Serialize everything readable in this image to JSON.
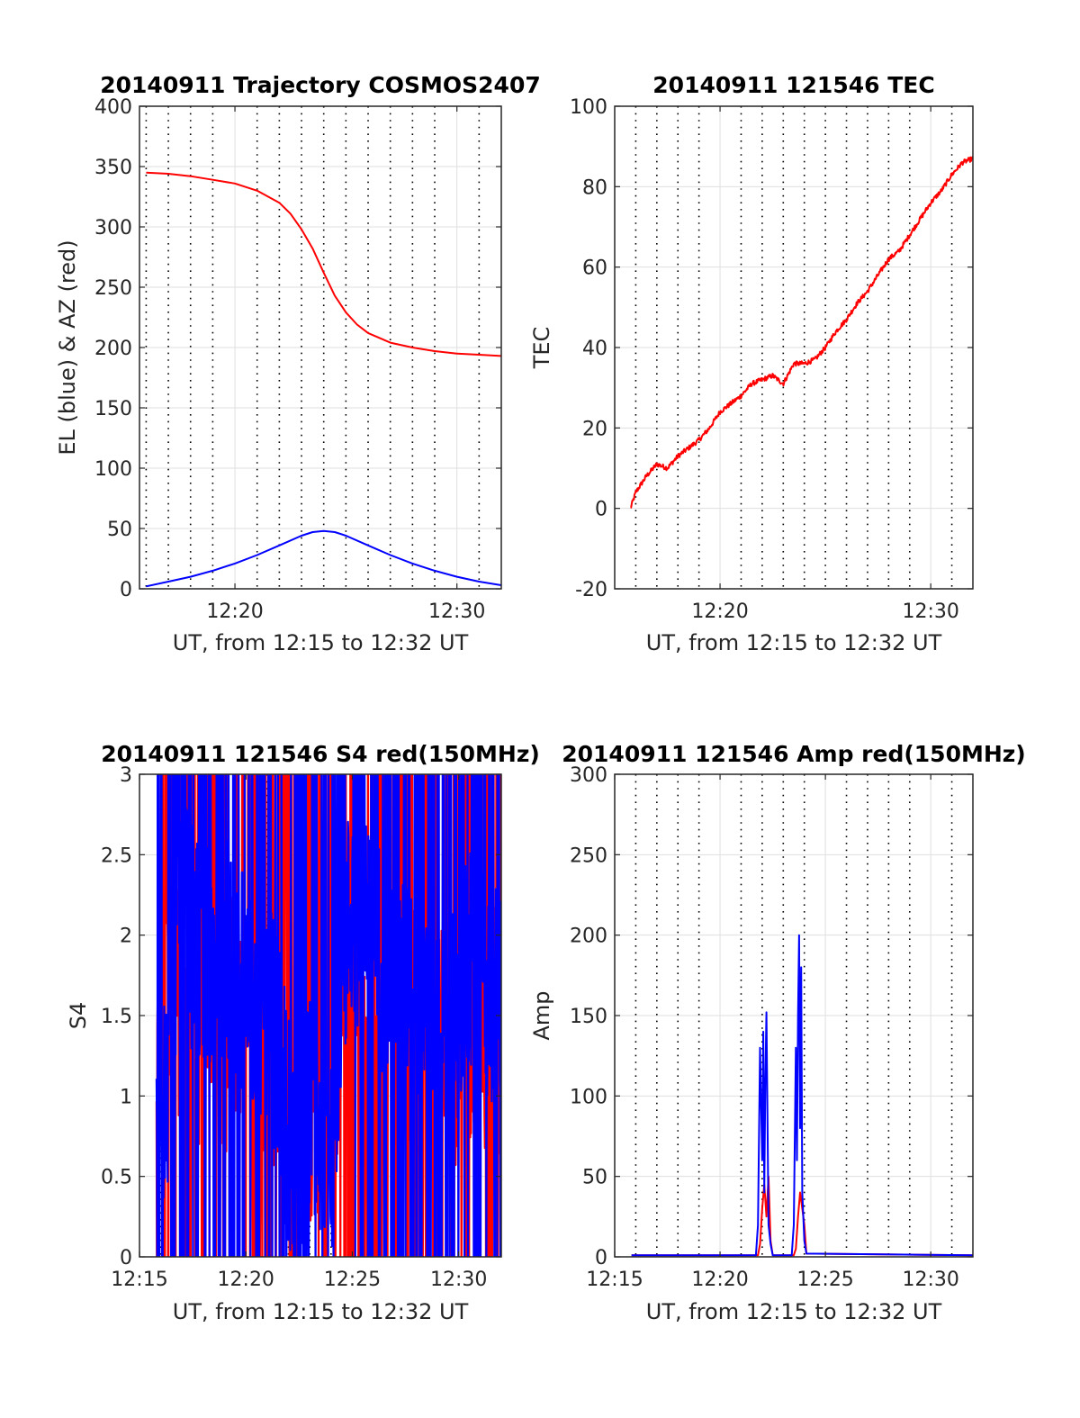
{
  "chart_data": [
    {
      "type": "line",
      "title": "20140911 Trajectory COSMOS2407",
      "xlabel": "UT, from 12:15 to 12:32 UT",
      "ylabel": "EL (blue) & AZ (red)",
      "xlim": [
        15.7,
        32.0
      ],
      "ylim": [
        0,
        400
      ],
      "xticks": [
        20,
        30
      ],
      "xtick_labels": [
        "12:20",
        "12:30"
      ],
      "yticks": [
        0,
        50,
        100,
        150,
        200,
        250,
        300,
        350,
        400
      ],
      "ytick_labels": [
        "0",
        "50",
        "100",
        "150",
        "200",
        "250",
        "300",
        "350",
        "400"
      ],
      "grid": true,
      "dotted_minute_lines": [
        16.0,
        17.0,
        18.0,
        19.0,
        21.0,
        22.0,
        23.0,
        24.0,
        25.0,
        26.0,
        27.0,
        28.0,
        29.0,
        31.0
      ],
      "series": [
        {
          "color": "#ff0000",
          "noise": 0,
          "x": [
            16.0,
            17.0,
            18.0,
            19.0,
            20.0,
            21.0,
            22.0,
            22.5,
            23.0,
            23.5,
            24.0,
            24.5,
            25.0,
            25.5,
            26.0,
            27.0,
            28.0,
            29.0,
            30.0,
            31.0,
            32.0
          ],
          "y": [
            345,
            344,
            342,
            339,
            336,
            330,
            320,
            311,
            298,
            282,
            262,
            243,
            229,
            219,
            212,
            204,
            200,
            197,
            195,
            194,
            193
          ]
        },
        {
          "color": "#0000ff",
          "noise": 0,
          "x": [
            16.0,
            17.0,
            18.0,
            19.0,
            20.0,
            21.0,
            22.0,
            23.0,
            23.5,
            24.0,
            24.5,
            25.0,
            26.0,
            27.0,
            28.0,
            29.0,
            30.0,
            31.0,
            32.0
          ],
          "y": [
            2,
            6,
            10,
            15,
            21,
            28,
            36,
            44,
            47,
            48,
            47,
            44,
            36,
            28,
            21,
            15,
            10,
            6,
            3
          ]
        }
      ]
    },
    {
      "type": "line",
      "title": "20140911 121546 TEC",
      "xlabel": "UT, from 12:15 to 12:32 UT",
      "ylabel": "TEC",
      "xlim": [
        15.0,
        32.0
      ],
      "ylim": [
        -20,
        100
      ],
      "xticks": [
        20,
        30
      ],
      "xtick_labels": [
        "12:20",
        "12:30"
      ],
      "yticks": [
        -20,
        0,
        20,
        40,
        60,
        80,
        100
      ],
      "ytick_labels": [
        "-20",
        "0",
        "20",
        "40",
        "60",
        "80",
        "100"
      ],
      "grid": true,
      "dotted_minute_lines": [
        16.0,
        17.0,
        18.0,
        19.0,
        21.0,
        22.0,
        23.0,
        24.0,
        25.0,
        26.0,
        27.0,
        28.0,
        29.0,
        31.0
      ],
      "series": [
        {
          "color": "#ff0000",
          "noise": 0.6,
          "x": [
            15.75,
            16.0,
            16.5,
            17.0,
            17.5,
            18.0,
            18.5,
            19.0,
            19.5,
            20.0,
            20.5,
            21.0,
            21.5,
            22.0,
            22.5,
            23.0,
            23.5,
            24.0,
            24.5,
            25.0,
            25.5,
            26.0,
            26.5,
            27.0,
            27.5,
            28.0,
            28.5,
            29.0,
            29.5,
            30.0,
            30.5,
            31.0,
            31.5,
            32.0
          ],
          "y": [
            0,
            4,
            8,
            11,
            10,
            13,
            15,
            17,
            20,
            24,
            26,
            28,
            31,
            32,
            33,
            31,
            36,
            36,
            37,
            40,
            44,
            47,
            51,
            54,
            58,
            62,
            64,
            68,
            72,
            76,
            79,
            83,
            86,
            87
          ]
        }
      ]
    },
    {
      "type": "line",
      "title": "20140911 121546 S4 red(150MHz)",
      "xlabel": "UT, from 12:15 to 12:32 UT",
      "ylabel": "S4",
      "xlim": [
        15.0,
        32.0
      ],
      "ylim": [
        0,
        3
      ],
      "xticks": [
        15,
        20,
        25,
        30
      ],
      "xtick_labels": [
        "12:15",
        "12:20",
        "12:25",
        "12:30"
      ],
      "yticks": [
        0,
        0.5,
        1,
        1.5,
        2,
        2.5,
        3
      ],
      "ytick_labels": [
        "0",
        "0.5",
        "1",
        "1.5",
        "2",
        "2.5",
        "3"
      ],
      "grid": true,
      "dotted_minute_lines": [
        16.0,
        17.0,
        18.0,
        19.0,
        21.0,
        22.0,
        23.0,
        24.0,
        26.0,
        27.0,
        28.0,
        29.0,
        31.0
      ],
      "series": [
        {
          "color": "#ff0000",
          "noise": 1.6,
          "x": [
            15.8,
            16.2,
            16.6,
            17.0,
            17.5,
            18.0,
            18.5,
            19.0,
            19.5,
            20.0,
            20.5,
            21.0,
            21.5,
            22.0,
            22.5,
            23.0,
            23.5,
            24.0,
            24.5,
            25.0,
            25.5,
            26.0,
            26.5,
            27.0,
            27.5,
            28.0,
            28.5,
            29.0,
            29.5,
            30.0,
            30.5,
            31.0,
            31.5,
            32.0
          ],
          "y": [
            1.2,
            1.5,
            1.6,
            1.7,
            1.5,
            1.5,
            1.6,
            1.4,
            1.6,
            1.6,
            1.4,
            1.3,
            1.2,
            0.9,
            0.8,
            1.0,
            1.0,
            1.2,
            1.6,
            1.8,
            1.7,
            1.6,
            1.6,
            1.5,
            1.6,
            1.4,
            1.2,
            1.3,
            1.2,
            1.4,
            1.5,
            1.5,
            1.4,
            1.4
          ]
        },
        {
          "color": "#0000ff",
          "noise": 1.5,
          "x": [
            15.8,
            16.2,
            16.6,
            17.0,
            17.5,
            18.0,
            18.5,
            19.0,
            19.5,
            20.0,
            20.5,
            21.0,
            21.5,
            22.0,
            22.5,
            23.0,
            23.5,
            24.0,
            24.5,
            25.0,
            25.5,
            26.0,
            26.5,
            27.0,
            27.5,
            28.0,
            28.5,
            29.0,
            29.5,
            30.0,
            30.5,
            31.0,
            31.5,
            32.0
          ],
          "y": [
            1.2,
            1.1,
            1.2,
            2.2,
            2.0,
            1.9,
            1.8,
            1.9,
            1.8,
            1.6,
            1.5,
            1.5,
            1.3,
            0.8,
            0.6,
            0.9,
            0.8,
            0.7,
            1.8,
            2.2,
            2.0,
            1.9,
            1.9,
            1.8,
            1.7,
            1.7,
            1.6,
            1.4,
            1.3,
            1.6,
            1.8,
            1.7,
            1.6,
            1.6
          ]
        }
      ]
    },
    {
      "type": "line",
      "title": "20140911 121546 Amp red(150MHz)",
      "xlabel": "UT, from 12:15 to 12:32 UT",
      "ylabel": "Amp",
      "xlim": [
        15.0,
        32.0
      ],
      "ylim": [
        0,
        300
      ],
      "xticks": [
        15,
        20,
        25,
        30
      ],
      "xtick_labels": [
        "12:15",
        "12:20",
        "12:25",
        "12:30"
      ],
      "yticks": [
        0,
        50,
        100,
        150,
        200,
        250,
        300
      ],
      "ytick_labels": [
        "0",
        "50",
        "100",
        "150",
        "200",
        "250",
        "300"
      ],
      "grid": true,
      "dotted_minute_lines": [
        16.0,
        17.0,
        18.0,
        19.0,
        21.0,
        22.0,
        23.0,
        24.0,
        26.0,
        27.0,
        28.0,
        29.0,
        31.0
      ],
      "series": [
        {
          "color": "#ff0000",
          "noise": 0,
          "x": [
            15.8,
            21.8,
            21.9,
            22.0,
            22.1,
            22.2,
            22.3,
            22.4,
            22.5,
            23.5,
            23.6,
            23.7,
            23.8,
            23.9,
            24.0,
            24.1,
            32.0
          ],
          "y": [
            1,
            1,
            8,
            30,
            45,
            25,
            50,
            10,
            1,
            1,
            5,
            25,
            40,
            30,
            20,
            2,
            1
          ]
        },
        {
          "color": "#0000ff",
          "noise": 0,
          "x": [
            15.8,
            21.7,
            21.8,
            21.9,
            22.0,
            22.05,
            22.1,
            22.15,
            22.2,
            22.25,
            22.3,
            22.4,
            22.5,
            23.4,
            23.5,
            23.6,
            23.65,
            23.7,
            23.75,
            23.8,
            23.85,
            23.9,
            24.0,
            24.1,
            32.0
          ],
          "y": [
            1,
            1,
            20,
            130,
            60,
            140,
            40,
            110,
            152,
            90,
            20,
            8,
            1,
            1,
            20,
            130,
            60,
            150,
            200,
            80,
            180,
            40,
            10,
            2,
            1
          ]
        }
      ]
    }
  ]
}
